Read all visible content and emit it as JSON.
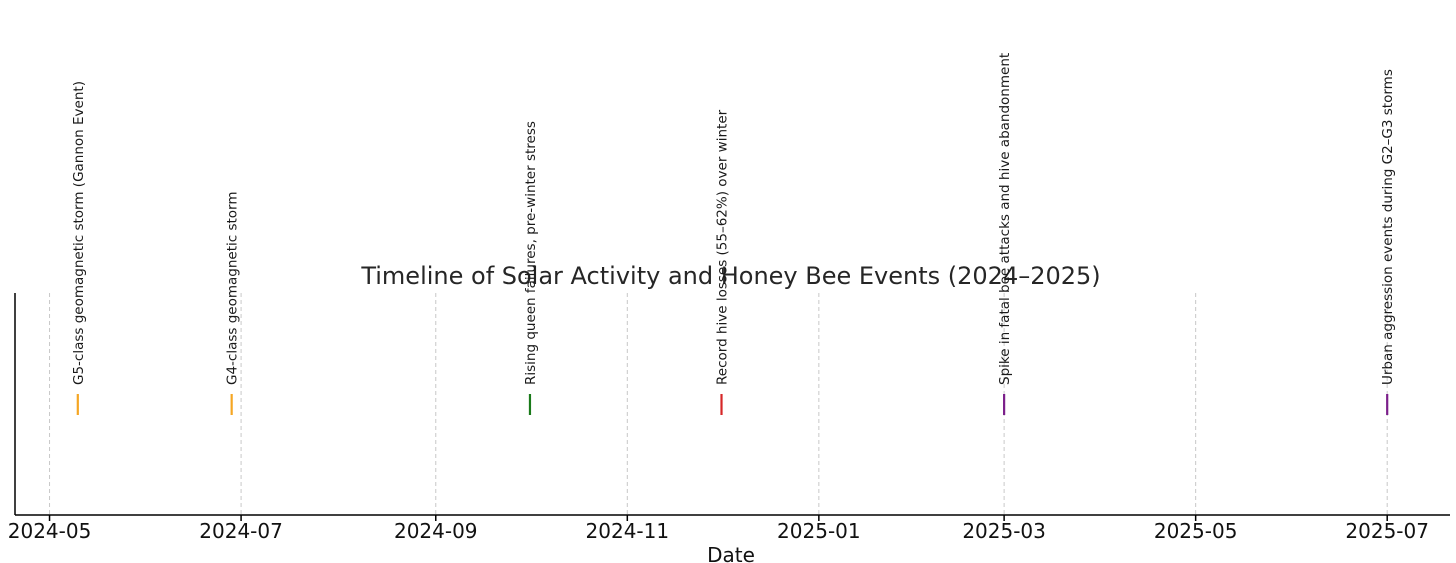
{
  "chart_data": {
    "type": "timeline",
    "title": "Timeline of Solar Activity and Honey Bee Events (2024–2025)",
    "xlabel": "Date",
    "ylabel": "",
    "x_ticks": [
      "2024-05",
      "2024-07",
      "2024-09",
      "2024-11",
      "2025-01",
      "2025-03",
      "2025-05",
      "2025-07"
    ],
    "xlim": [
      "2024-04-20",
      "2025-07-21"
    ],
    "grid": "vertical dashed",
    "events": [
      {
        "date": "2024-05-10",
        "label": "G5-class geomagnetic storm (Gannon Event)",
        "color": "#f5a623"
      },
      {
        "date": "2024-06-28",
        "label": "G4-class geomagnetic storm",
        "color": "#f5a623"
      },
      {
        "date": "2024-10-01",
        "label": "Rising queen failures, pre-winter stress",
        "color": "#1a7a1a"
      },
      {
        "date": "2024-12-01",
        "label": "Record hive losses (55–62%) over winter",
        "color": "#d62728"
      },
      {
        "date": "2025-03-01",
        "label": "Spike in fatal bee attacks and hive abandonment",
        "color": "#7b1f8a"
      },
      {
        "date": "2025-07-01",
        "label": "Urban aggression events during G2–G3 storms",
        "color": "#7b1f8a"
      }
    ]
  }
}
